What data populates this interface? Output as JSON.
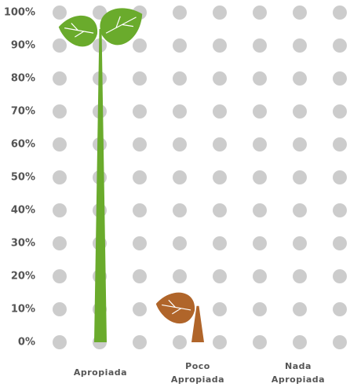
{
  "chart_data": {
    "type": "plant-bar",
    "categories": [
      "Apropiada",
      "Poco Apropiada",
      "Nada Apropiada"
    ],
    "values": [
      95,
      11,
      0
    ],
    "colors": [
      "#6aab2c",
      "#b0652a",
      "#b0652a"
    ],
    "ylim": [
      0,
      100
    ],
    "yticks": [
      {
        "value": 0,
        "label": "0%"
      },
      {
        "value": 10,
        "label": "10%"
      },
      {
        "value": 20,
        "label": "20%"
      },
      {
        "value": 30,
        "label": "30%"
      },
      {
        "value": 40,
        "label": "40%"
      },
      {
        "value": 50,
        "label": "50%"
      },
      {
        "value": 60,
        "label": "60%"
      },
      {
        "value": 70,
        "label": "70%"
      },
      {
        "value": 80,
        "label": "80%"
      },
      {
        "value": 90,
        "label": "90%"
      },
      {
        "value": 100,
        "label": "100%"
      }
    ],
    "grid": true
  }
}
